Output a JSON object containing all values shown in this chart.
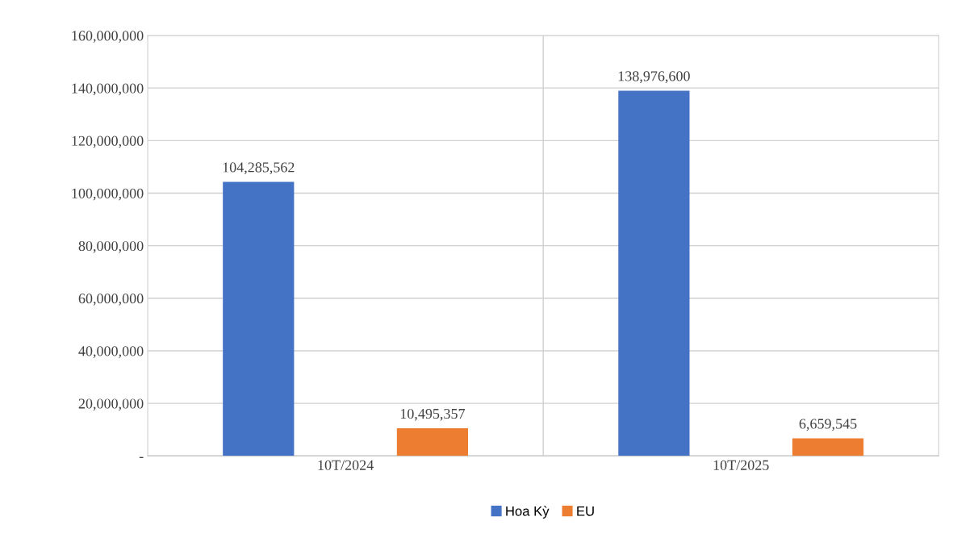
{
  "chart_data": {
    "type": "bar",
    "categories": [
      "10T/2024",
      "10T/2025"
    ],
    "series": [
      {
        "name": "Hoa Kỳ",
        "color": "#4472c4",
        "values": [
          104285562,
          138976600
        ],
        "value_labels": [
          "104,285,562",
          "138,976,600"
        ]
      },
      {
        "name": "EU",
        "color": "#ed7d31",
        "values": [
          10495357,
          6659545
        ],
        "value_labels": [
          "10,495,357",
          "6,659,545"
        ]
      }
    ],
    "ylim": [
      0,
      160000000
    ],
    "yticks": [
      {
        "value": 0,
        "label": "-"
      },
      {
        "value": 20000000,
        "label": "20,000,000"
      },
      {
        "value": 40000000,
        "label": "40,000,000"
      },
      {
        "value": 60000000,
        "label": "60,000,000"
      },
      {
        "value": 80000000,
        "label": "80,000,000"
      },
      {
        "value": 100000000,
        "label": "100,000,000"
      },
      {
        "value": 120000000,
        "label": "120,000,000"
      },
      {
        "value": 140000000,
        "label": "140,000,000"
      },
      {
        "value": 160000000,
        "label": "160,000,000"
      }
    ],
    "grid": true,
    "legend": "bottom"
  }
}
